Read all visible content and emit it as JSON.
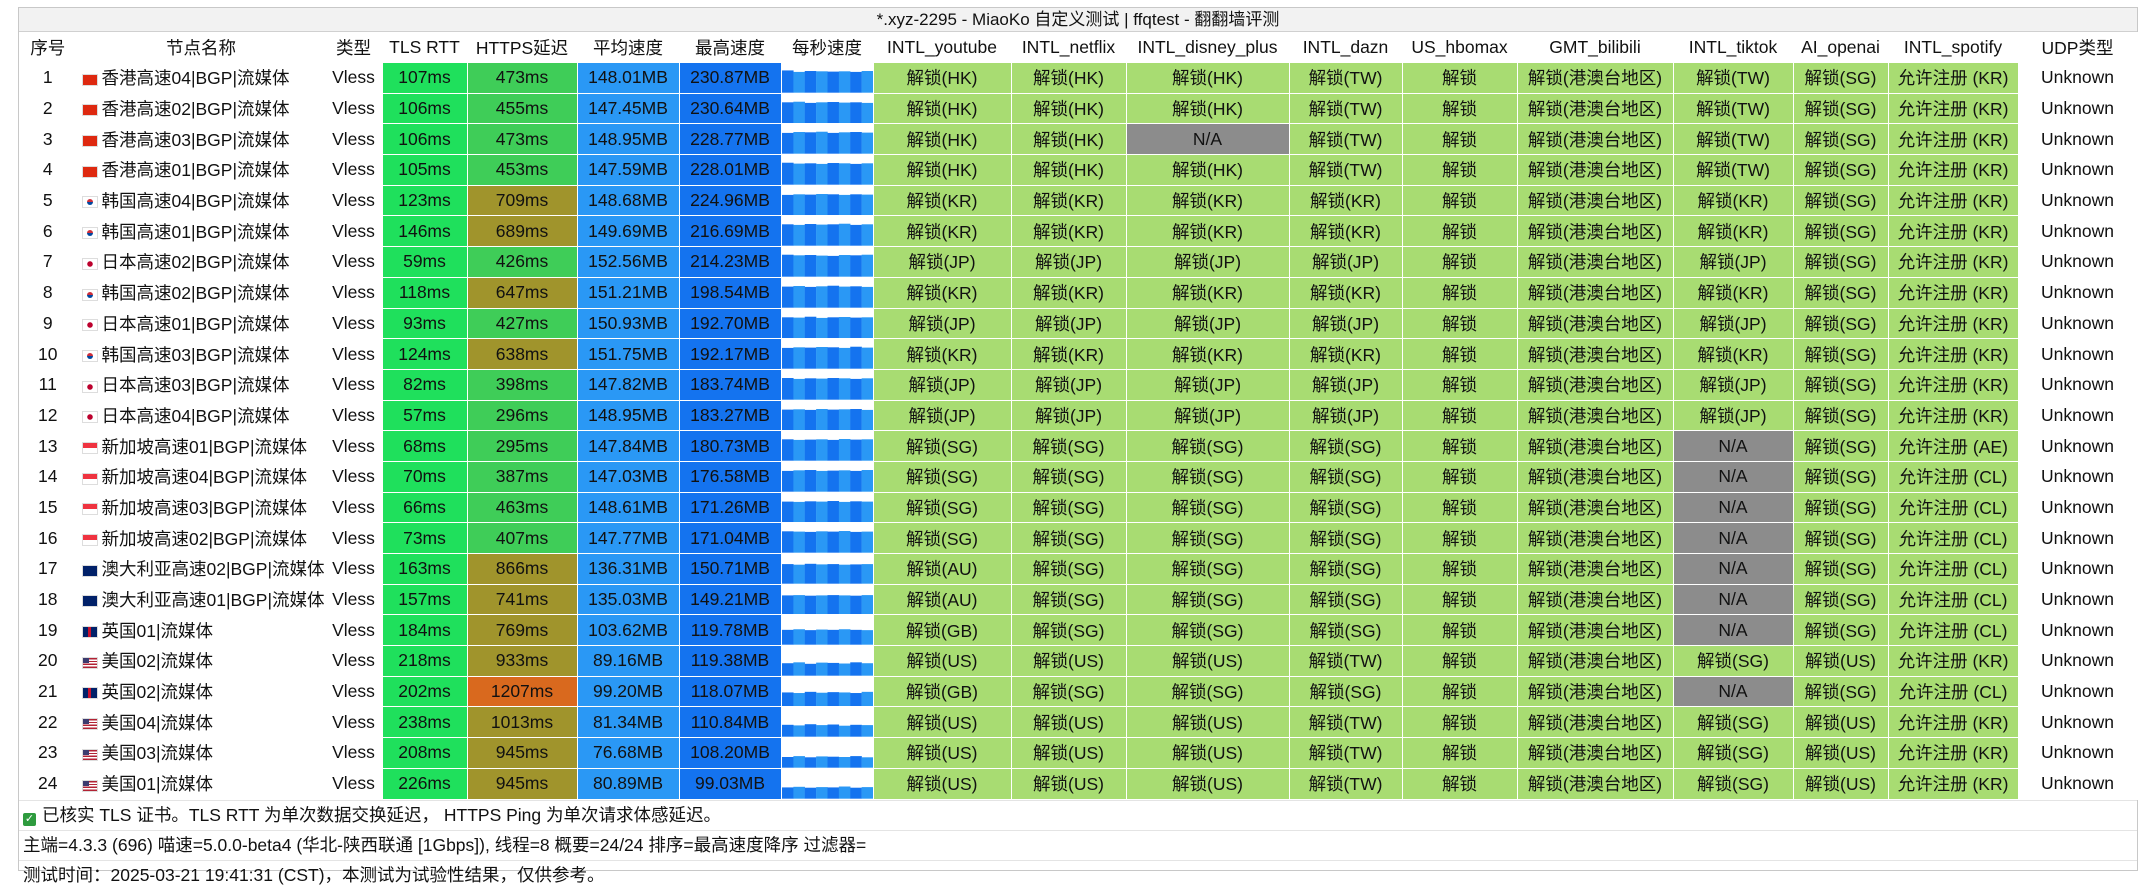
{
  "title": "*.xyz-2295 - MiaoKo 自定义测试 | ffqtest - 翻翻墙评测",
  "columns": [
    "序号",
    "节点名称",
    "类型",
    "TLS RTT",
    "HTTPS延迟",
    "平均速度",
    "最高速度",
    "每秒速度",
    "INTL_youtube",
    "INTL_netflix",
    "INTL_disney_plus",
    "INTL_dazn",
    "US_hbomax",
    "GMT_bilibili",
    "INTL_tiktok",
    "AI_openai",
    "INTL_spotify",
    "UDP类型"
  ],
  "colors": {
    "tls_rtt": "#1fe05c",
    "https_green": "#3fcd58",
    "https_olive": "#a0942c",
    "https_orange": "#d9691e",
    "speed_avg": "#2a98f5",
    "speed_max": "#1473ef",
    "unlock": "#a8dc72",
    "na": "#8c8c8c",
    "udp": "#ffffff"
  },
  "rows": [
    {
      "no": "1",
      "flag": "hk",
      "name": "香港高速04|BGP|流媒体",
      "type": "Vless",
      "tls": "107ms",
      "https": "473ms",
      "hlevel": "green",
      "avg": "148.01MB",
      "max": "230.87MB",
      "spark": [
        0.75,
        0.7,
        0.73,
        0.72,
        0.71,
        0.72,
        0.7,
        0.73
      ],
      "youtube": "解锁(HK)",
      "netflix": "解锁(HK)",
      "disney": "解锁(HK)",
      "dazn": "解锁(TW)",
      "hbomax": "解锁",
      "bilibili": "解锁(港澳台地区)",
      "tiktok": "解锁(TW)",
      "openai": "解锁(SG)",
      "spotify": "允许注册 (KR)",
      "udp": "Unknown"
    },
    {
      "no": "2",
      "flag": "hk",
      "name": "香港高速02|BGP|流媒体",
      "type": "Vless",
      "tls": "106ms",
      "https": "455ms",
      "hlevel": "green",
      "avg": "147.45MB",
      "max": "230.64MB",
      "spark": [
        0.72,
        0.74,
        0.7,
        0.72,
        0.73,
        0.71,
        0.72,
        0.7
      ],
      "youtube": "解锁(HK)",
      "netflix": "解锁(HK)",
      "disney": "解锁(HK)",
      "dazn": "解锁(TW)",
      "hbomax": "解锁",
      "bilibili": "解锁(港澳台地区)",
      "tiktok": "解锁(TW)",
      "openai": "解锁(SG)",
      "spotify": "允许注册 (KR)",
      "udp": "Unknown"
    },
    {
      "no": "3",
      "flag": "hk",
      "name": "香港高速03|BGP|流媒体",
      "type": "Vless",
      "tls": "106ms",
      "https": "473ms",
      "hlevel": "green",
      "avg": "148.95MB",
      "max": "228.77MB",
      "spark": [
        0.7,
        0.73,
        0.72,
        0.74,
        0.7,
        0.72,
        0.73,
        0.71
      ],
      "youtube": "解锁(HK)",
      "netflix": "解锁(HK)",
      "disney": "N/A",
      "dazn": "解锁(TW)",
      "hbomax": "解锁",
      "bilibili": "解锁(港澳台地区)",
      "tiktok": "解锁(TW)",
      "openai": "解锁(SG)",
      "spotify": "允许注册 (KR)",
      "udp": "Unknown"
    },
    {
      "no": "4",
      "flag": "hk",
      "name": "香港高速01|BGP|流媒体",
      "type": "Vless",
      "tls": "105ms",
      "https": "453ms",
      "hlevel": "green",
      "avg": "147.59MB",
      "max": "228.01MB",
      "spark": [
        0.74,
        0.71,
        0.72,
        0.7,
        0.73,
        0.72,
        0.7,
        0.72
      ],
      "youtube": "解锁(HK)",
      "netflix": "解锁(HK)",
      "disney": "解锁(HK)",
      "dazn": "解锁(TW)",
      "hbomax": "解锁",
      "bilibili": "解锁(港澳台地区)",
      "tiktok": "解锁(TW)",
      "openai": "解锁(SG)",
      "spotify": "允许注册 (KR)",
      "udp": "Unknown"
    },
    {
      "no": "5",
      "flag": "kr",
      "name": "韩国高速04|BGP|流媒体",
      "type": "Vless",
      "tls": "123ms",
      "https": "709ms",
      "hlevel": "olive",
      "avg": "148.68MB",
      "max": "224.96MB",
      "spark": [
        0.7,
        0.72,
        0.71,
        0.73,
        0.72,
        0.7,
        0.72,
        0.71
      ],
      "youtube": "解锁(KR)",
      "netflix": "解锁(KR)",
      "disney": "解锁(KR)",
      "dazn": "解锁(KR)",
      "hbomax": "解锁",
      "bilibili": "解锁(港澳台地区)",
      "tiktok": "解锁(KR)",
      "openai": "解锁(SG)",
      "spotify": "允许注册 (KR)",
      "udp": "Unknown"
    },
    {
      "no": "6",
      "flag": "kr",
      "name": "韩国高速01|BGP|流媒体",
      "type": "Vless",
      "tls": "146ms",
      "https": "689ms",
      "hlevel": "olive",
      "avg": "149.69MB",
      "max": "216.69MB",
      "spark": [
        0.72,
        0.7,
        0.73,
        0.71,
        0.72,
        0.74,
        0.7,
        0.72
      ],
      "youtube": "解锁(KR)",
      "netflix": "解锁(KR)",
      "disney": "解锁(KR)",
      "dazn": "解锁(KR)",
      "hbomax": "解锁",
      "bilibili": "解锁(港澳台地区)",
      "tiktok": "解锁(KR)",
      "openai": "解锁(SG)",
      "spotify": "允许注册 (KR)",
      "udp": "Unknown"
    },
    {
      "no": "7",
      "flag": "jp",
      "name": "日本高速02|BGP|流媒体",
      "type": "Vless",
      "tls": "59ms",
      "https": "426ms",
      "hlevel": "green",
      "avg": "152.56MB",
      "max": "214.23MB",
      "spark": [
        0.74,
        0.72,
        0.73,
        0.71,
        0.7,
        0.73,
        0.72,
        0.74
      ],
      "youtube": "解锁(JP)",
      "netflix": "解锁(JP)",
      "disney": "解锁(JP)",
      "dazn": "解锁(JP)",
      "hbomax": "解锁",
      "bilibili": "解锁(港澳台地区)",
      "tiktok": "解锁(JP)",
      "openai": "解锁(SG)",
      "spotify": "允许注册 (KR)",
      "udp": "Unknown"
    },
    {
      "no": "8",
      "flag": "kr",
      "name": "韩国高速02|BGP|流媒体",
      "type": "Vless",
      "tls": "118ms",
      "https": "647ms",
      "hlevel": "olive",
      "avg": "151.21MB",
      "max": "198.54MB",
      "spark": [
        0.71,
        0.73,
        0.7,
        0.72,
        0.74,
        0.71,
        0.72,
        0.7
      ],
      "youtube": "解锁(KR)",
      "netflix": "解锁(KR)",
      "disney": "解锁(KR)",
      "dazn": "解锁(KR)",
      "hbomax": "解锁",
      "bilibili": "解锁(港澳台地区)",
      "tiktok": "解锁(KR)",
      "openai": "解锁(SG)",
      "spotify": "允许注册 (KR)",
      "udp": "Unknown"
    },
    {
      "no": "9",
      "flag": "jp",
      "name": "日本高速01|BGP|流媒体",
      "type": "Vless",
      "tls": "93ms",
      "https": "427ms",
      "hlevel": "green",
      "avg": "150.93MB",
      "max": "192.70MB",
      "spark": [
        0.72,
        0.71,
        0.74,
        0.7,
        0.72,
        0.73,
        0.71,
        0.72
      ],
      "youtube": "解锁(JP)",
      "netflix": "解锁(JP)",
      "disney": "解锁(JP)",
      "dazn": "解锁(JP)",
      "hbomax": "解锁",
      "bilibili": "解锁(港澳台地区)",
      "tiktok": "解锁(JP)",
      "openai": "解锁(SG)",
      "spotify": "允许注册 (KR)",
      "udp": "Unknown"
    },
    {
      "no": "10",
      "flag": "kr",
      "name": "韩国高速03|BGP|流媒体",
      "type": "Vless",
      "tls": "124ms",
      "https": "638ms",
      "hlevel": "olive",
      "avg": "151.75MB",
      "max": "192.17MB",
      "spark": [
        0.7,
        0.72,
        0.71,
        0.73,
        0.72,
        0.7,
        0.74,
        0.71
      ],
      "youtube": "解锁(KR)",
      "netflix": "解锁(KR)",
      "disney": "解锁(KR)",
      "dazn": "解锁(KR)",
      "hbomax": "解锁",
      "bilibili": "解锁(港澳台地区)",
      "tiktok": "解锁(KR)",
      "openai": "解锁(SG)",
      "spotify": "允许注册 (KR)",
      "udp": "Unknown"
    },
    {
      "no": "11",
      "flag": "jp",
      "name": "日本高速03|BGP|流媒体",
      "type": "Vless",
      "tls": "82ms",
      "https": "398ms",
      "hlevel": "green",
      "avg": "147.82MB",
      "max": "183.74MB",
      "spark": [
        0.73,
        0.7,
        0.72,
        0.71,
        0.73,
        0.72,
        0.7,
        0.72
      ],
      "youtube": "解锁(JP)",
      "netflix": "解锁(JP)",
      "disney": "解锁(JP)",
      "dazn": "解锁(JP)",
      "hbomax": "解锁",
      "bilibili": "解锁(港澳台地区)",
      "tiktok": "解锁(JP)",
      "openai": "解锁(SG)",
      "spotify": "允许注册 (KR)",
      "udp": "Unknown"
    },
    {
      "no": "12",
      "flag": "jp",
      "name": "日本高速04|BGP|流媒体",
      "type": "Vless",
      "tls": "57ms",
      "https": "296ms",
      "hlevel": "green",
      "avg": "148.95MB",
      "max": "183.27MB",
      "spark": [
        0.71,
        0.72,
        0.7,
        0.73,
        0.71,
        0.72,
        0.73,
        0.7
      ],
      "youtube": "解锁(JP)",
      "netflix": "解锁(JP)",
      "disney": "解锁(JP)",
      "dazn": "解锁(JP)",
      "hbomax": "解锁",
      "bilibili": "解锁(港澳台地区)",
      "tiktok": "解锁(JP)",
      "openai": "解锁(SG)",
      "spotify": "允许注册 (KR)",
      "udp": "Unknown"
    },
    {
      "no": "13",
      "flag": "sg",
      "name": "新加坡高速01|BGP|流媒体",
      "type": "Vless",
      "tls": "68ms",
      "https": "295ms",
      "hlevel": "green",
      "avg": "147.84MB",
      "max": "180.73MB",
      "spark": [
        0.72,
        0.7,
        0.71,
        0.72,
        0.7,
        0.73,
        0.71,
        0.72
      ],
      "youtube": "解锁(SG)",
      "netflix": "解锁(SG)",
      "disney": "解锁(SG)",
      "dazn": "解锁(SG)",
      "hbomax": "解锁",
      "bilibili": "解锁(港澳台地区)",
      "tiktok": "N/A",
      "openai": "解锁(SG)",
      "spotify": "允许注册 (AE)",
      "udp": "Unknown"
    },
    {
      "no": "14",
      "flag": "sg",
      "name": "新加坡高速04|BGP|流媒体",
      "type": "Vless",
      "tls": "70ms",
      "https": "387ms",
      "hlevel": "green",
      "avg": "147.03MB",
      "max": "176.58MB",
      "spark": [
        0.7,
        0.72,
        0.73,
        0.7,
        0.71,
        0.72,
        0.7,
        0.73
      ],
      "youtube": "解锁(SG)",
      "netflix": "解锁(SG)",
      "disney": "解锁(SG)",
      "dazn": "解锁(SG)",
      "hbomax": "解锁",
      "bilibili": "解锁(港澳台地区)",
      "tiktok": "N/A",
      "openai": "解锁(SG)",
      "spotify": "允许注册 (CL)",
      "udp": "Unknown"
    },
    {
      "no": "15",
      "flag": "sg",
      "name": "新加坡高速03|BGP|流媒体",
      "type": "Vless",
      "tls": "66ms",
      "https": "463ms",
      "hlevel": "green",
      "avg": "148.61MB",
      "max": "171.26MB",
      "spark": [
        0.71,
        0.7,
        0.72,
        0.71,
        0.73,
        0.7,
        0.72,
        0.71
      ],
      "youtube": "解锁(SG)",
      "netflix": "解锁(SG)",
      "disney": "解锁(SG)",
      "dazn": "解锁(SG)",
      "hbomax": "解锁",
      "bilibili": "解锁(港澳台地区)",
      "tiktok": "N/A",
      "openai": "解锁(SG)",
      "spotify": "允许注册 (CL)",
      "udp": "Unknown"
    },
    {
      "no": "16",
      "flag": "sg",
      "name": "新加坡高速02|BGP|流媒体",
      "type": "Vless",
      "tls": "73ms",
      "https": "407ms",
      "hlevel": "green",
      "avg": "147.77MB",
      "max": "171.04MB",
      "spark": [
        0.72,
        0.71,
        0.7,
        0.72,
        0.71,
        0.73,
        0.7,
        0.71
      ],
      "youtube": "解锁(SG)",
      "netflix": "解锁(SG)",
      "disney": "解锁(SG)",
      "dazn": "解锁(SG)",
      "hbomax": "解锁",
      "bilibili": "解锁(港澳台地区)",
      "tiktok": "N/A",
      "openai": "解锁(SG)",
      "spotify": "允许注册 (CL)",
      "udp": "Unknown"
    },
    {
      "no": "17",
      "flag": "au",
      "name": "澳大利亚高速02|BGP|流媒体",
      "type": "Vless",
      "tls": "163ms",
      "https": "866ms",
      "hlevel": "olive",
      "avg": "136.31MB",
      "max": "150.71MB",
      "spark": [
        0.66,
        0.64,
        0.67,
        0.65,
        0.66,
        0.64,
        0.65,
        0.66
      ],
      "youtube": "解锁(AU)",
      "netflix": "解锁(SG)",
      "disney": "解锁(SG)",
      "dazn": "解锁(SG)",
      "hbomax": "解锁",
      "bilibili": "解锁(港澳台地区)",
      "tiktok": "N/A",
      "openai": "解锁(SG)",
      "spotify": "允许注册 (CL)",
      "udp": "Unknown"
    },
    {
      "no": "18",
      "flag": "au",
      "name": "澳大利亚高速01|BGP|流媒体",
      "type": "Vless",
      "tls": "157ms",
      "https": "741ms",
      "hlevel": "olive",
      "avg": "135.03MB",
      "max": "149.21MB",
      "spark": [
        0.65,
        0.66,
        0.64,
        0.65,
        0.66,
        0.65,
        0.64,
        0.66
      ],
      "youtube": "解锁(AU)",
      "netflix": "解锁(SG)",
      "disney": "解锁(SG)",
      "dazn": "解锁(SG)",
      "hbomax": "解锁",
      "bilibili": "解锁(港澳台地区)",
      "tiktok": "N/A",
      "openai": "解锁(SG)",
      "spotify": "允许注册 (CL)",
      "udp": "Unknown"
    },
    {
      "no": "19",
      "flag": "gb",
      "name": "英国01|流媒体",
      "type": "Vless",
      "tls": "184ms",
      "https": "769ms",
      "hlevel": "olive",
      "avg": "103.62MB",
      "max": "119.78MB",
      "spark": [
        0.5,
        0.52,
        0.49,
        0.51,
        0.5,
        0.52,
        0.5,
        0.49
      ],
      "youtube": "解锁(GB)",
      "netflix": "解锁(SG)",
      "disney": "解锁(SG)",
      "dazn": "解锁(SG)",
      "hbomax": "解锁",
      "bilibili": "解锁(港澳台地区)",
      "tiktok": "N/A",
      "openai": "解锁(SG)",
      "spotify": "允许注册 (CL)",
      "udp": "Unknown"
    },
    {
      "no": "20",
      "flag": "us",
      "name": "美国02|流媒体",
      "type": "Vless",
      "tls": "218ms",
      "https": "933ms",
      "hlevel": "olive",
      "avg": "89.16MB",
      "max": "119.38MB",
      "spark": [
        0.42,
        0.45,
        0.4,
        0.44,
        0.43,
        0.41,
        0.45,
        0.42
      ],
      "youtube": "解锁(US)",
      "netflix": "解锁(US)",
      "disney": "解锁(US)",
      "dazn": "解锁(TW)",
      "hbomax": "解锁",
      "bilibili": "解锁(港澳台地区)",
      "tiktok": "解锁(SG)",
      "openai": "解锁(US)",
      "spotify": "允许注册 (KR)",
      "udp": "Unknown"
    },
    {
      "no": "21",
      "flag": "gb",
      "name": "英国02|流媒体",
      "type": "Vless",
      "tls": "202ms",
      "https": "1207ms",
      "hlevel": "orange",
      "avg": "99.20MB",
      "max": "118.07MB",
      "spark": [
        0.48,
        0.46,
        0.5,
        0.47,
        0.49,
        0.48,
        0.46,
        0.5
      ],
      "youtube": "解锁(GB)",
      "netflix": "解锁(SG)",
      "disney": "解锁(SG)",
      "dazn": "解锁(SG)",
      "hbomax": "解锁",
      "bilibili": "解锁(港澳台地区)",
      "tiktok": "N/A",
      "openai": "解锁(SG)",
      "spotify": "允许注册 (CL)",
      "udp": "Unknown"
    },
    {
      "no": "22",
      "flag": "us",
      "name": "美国04|流媒体",
      "type": "Vless",
      "tls": "238ms",
      "https": "1013ms",
      "hlevel": "olive",
      "avg": "81.34MB",
      "max": "110.84MB",
      "spark": [
        0.4,
        0.38,
        0.42,
        0.39,
        0.41,
        0.37,
        0.4,
        0.39
      ],
      "youtube": "解锁(US)",
      "netflix": "解锁(US)",
      "disney": "解锁(US)",
      "dazn": "解锁(TW)",
      "hbomax": "解锁",
      "bilibili": "解锁(港澳台地区)",
      "tiktok": "解锁(SG)",
      "openai": "解锁(US)",
      "spotify": "允许注册 (KR)",
      "udp": "Unknown"
    },
    {
      "no": "23",
      "flag": "us",
      "name": "美国03|流媒体",
      "type": "Vless",
      "tls": "208ms",
      "https": "945ms",
      "hlevel": "olive",
      "avg": "76.68MB",
      "max": "108.20MB",
      "spark": [
        0.36,
        0.39,
        0.35,
        0.38,
        0.37,
        0.36,
        0.39,
        0.35
      ],
      "youtube": "解锁(US)",
      "netflix": "解锁(US)",
      "disney": "解锁(US)",
      "dazn": "解锁(TW)",
      "hbomax": "解锁",
      "bilibili": "解锁(港澳台地区)",
      "tiktok": "解锁(SG)",
      "openai": "解锁(US)",
      "spotify": "允许注册 (KR)",
      "udp": "Unknown"
    },
    {
      "no": "24",
      "flag": "us",
      "name": "美国01|流媒体",
      "type": "Vless",
      "tls": "226ms",
      "https": "945ms",
      "hlevel": "olive",
      "avg": "80.89MB",
      "max": "99.03MB",
      "spark": [
        0.38,
        0.4,
        0.37,
        0.39,
        0.38,
        0.41,
        0.37,
        0.39
      ],
      "youtube": "解锁(US)",
      "netflix": "解锁(US)",
      "disney": "解锁(US)",
      "dazn": "解锁(TW)",
      "hbomax": "解锁",
      "bilibili": "解锁(港澳台地区)",
      "tiktok": "解锁(SG)",
      "openai": "解锁(US)",
      "spotify": "允许注册 (KR)",
      "udp": "Unknown"
    }
  ],
  "footer": {
    "line1": "已核实 TLS 证书。TLS RTT 为单次数据交换延迟， HTTPS Ping 为单次请求体感延迟。",
    "line2": "主端=4.3.3 (696) 喵速=5.0.0-beta4 (华北-陕西联通 [1Gbps]), 线程=8 概要=24/24 排序=最高速度降序 过滤器=",
    "line3": "测试时间：2025-03-21 19:41:31 (CST)，本测试为试验性结果，仅供参考。"
  }
}
